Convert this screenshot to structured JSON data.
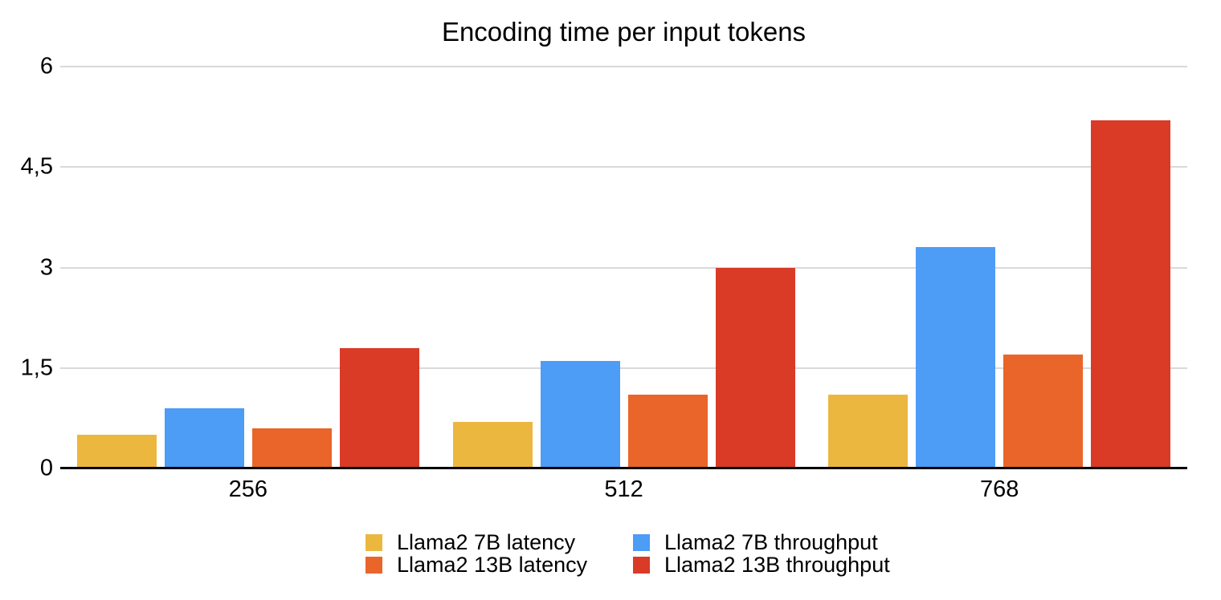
{
  "chart_data": {
    "type": "bar",
    "title": "Encoding time per input tokens",
    "categories": [
      "256",
      "512",
      "768"
    ],
    "series": [
      {
        "name": "Llama2 7B latency",
        "color": "#ECB73F",
        "values": [
          0.5,
          0.7,
          1.1
        ]
      },
      {
        "name": "Llama2 7B throughput",
        "color": "#4D9CF5",
        "values": [
          0.9,
          1.6,
          3.3
        ]
      },
      {
        "name": "Llama2 13B latency",
        "color": "#EA6529",
        "values": [
          0.6,
          1.1,
          1.7
        ]
      },
      {
        "name": "Llama2 13B throughput",
        "color": "#D93B27",
        "values": [
          1.8,
          3.0,
          5.2
        ]
      }
    ],
    "xlabel": "",
    "ylabel": "",
    "ylim": [
      0,
      6
    ],
    "y_ticks": [
      {
        "value": 0,
        "label": "0"
      },
      {
        "value": 1.5,
        "label": "1,5"
      },
      {
        "value": 3,
        "label": "3"
      },
      {
        "value": 4.5,
        "label": "4,5"
      },
      {
        "value": 6,
        "label": "6"
      }
    ],
    "grid": true,
    "legend_position": "bottom",
    "colors": {
      "background": "#ffffff",
      "axis": "#000000",
      "gridline": "#d9d9d9",
      "text": "#000000"
    }
  }
}
